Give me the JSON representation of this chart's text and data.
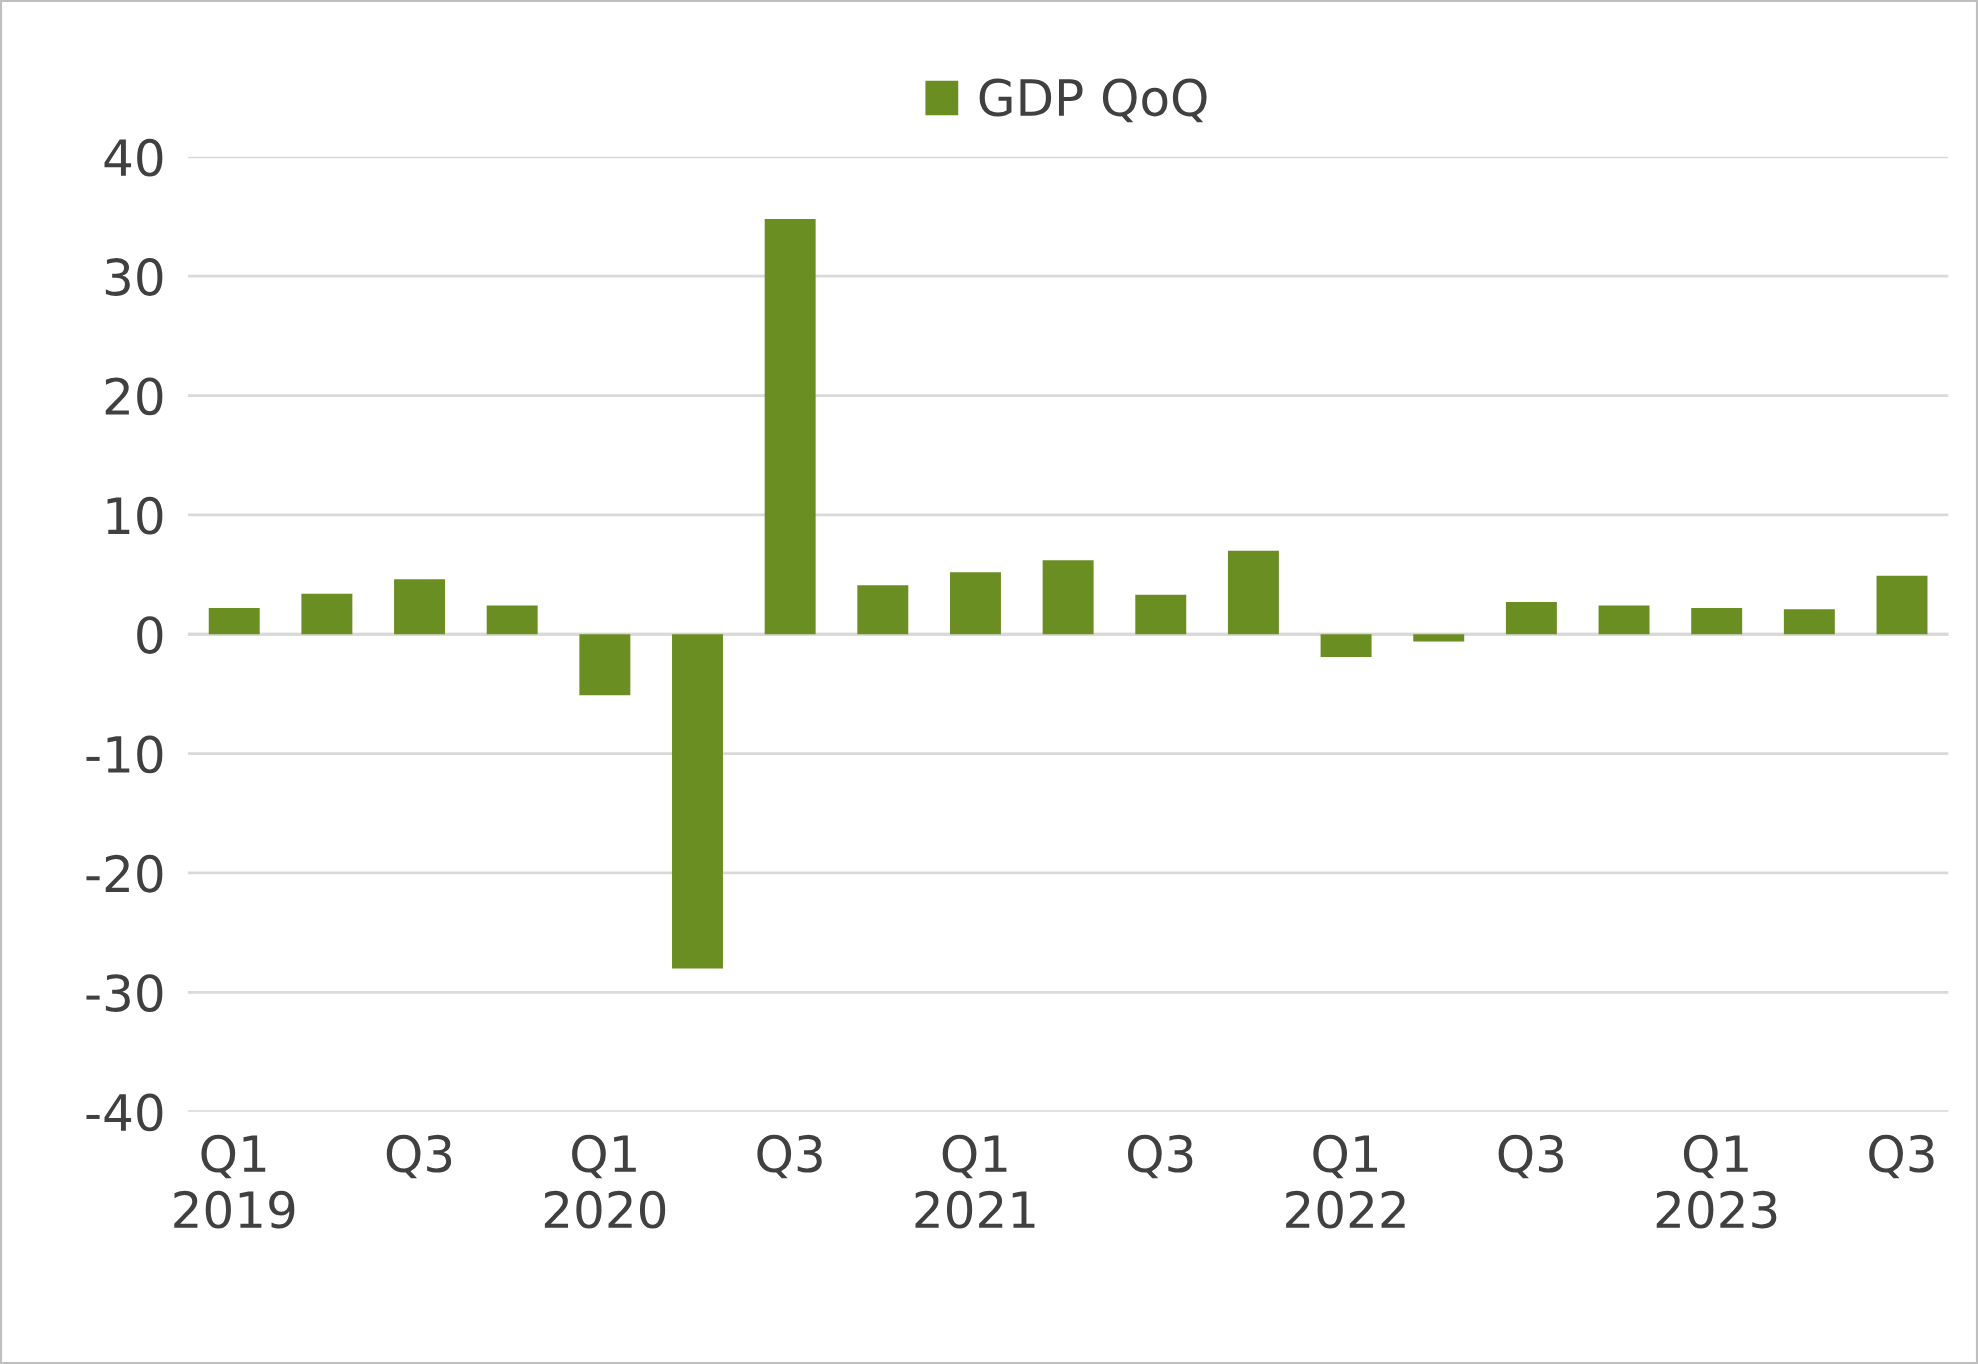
{
  "chart_data": {
    "type": "bar",
    "categories": [
      "Q1\n2019",
      null,
      "Q3",
      null,
      "Q1\n2020",
      null,
      "Q3",
      null,
      "Q1\n2021",
      null,
      "Q3",
      null,
      "Q1\n2022",
      null,
      "Q3",
      null,
      "Q1\n2023",
      null,
      "Q3"
    ],
    "series": [
      {
        "name": "GDP QoQ",
        "color": "#6b8e23",
        "values": [
          2.2,
          3.4,
          4.6,
          2.4,
          -5.1,
          -28.0,
          34.8,
          4.1,
          5.2,
          6.2,
          3.3,
          7.0,
          -1.9,
          -0.6,
          2.7,
          2.4,
          2.2,
          2.1,
          4.9
        ]
      }
    ],
    "ylim": [
      -40,
      40
    ],
    "yticks": [
      -40,
      -30,
      -20,
      -10,
      0,
      10,
      20,
      30,
      40
    ],
    "grid": "y",
    "legend": "top"
  }
}
